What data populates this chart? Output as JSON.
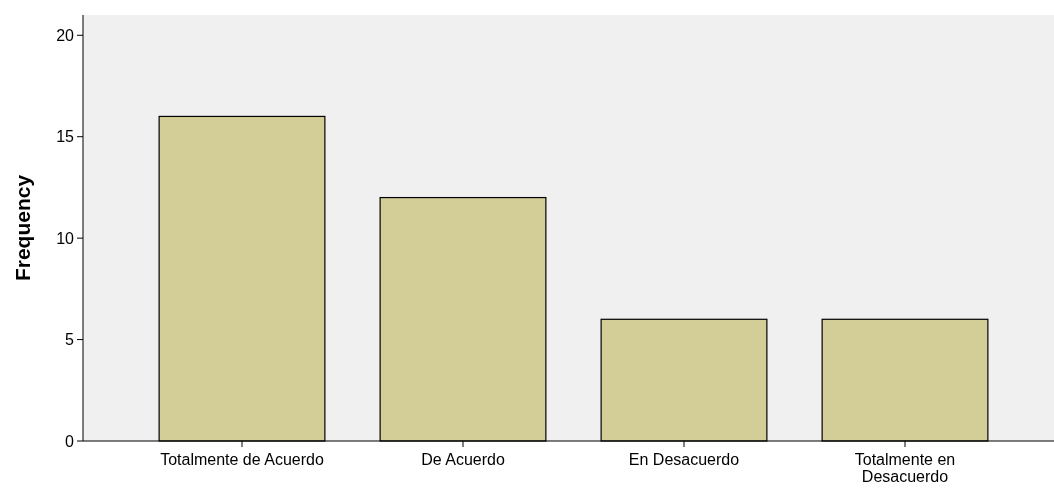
{
  "chart_data": {
    "type": "bar",
    "ylabel": "Frequency",
    "categories": [
      "Totalmente de Acuerdo",
      "De Acuerdo",
      "En Desacuerdo",
      "Totalmente en Desacuerdo"
    ],
    "values": [
      16,
      12,
      6,
      6
    ],
    "color": "#d3ce97",
    "ylim": [
      0,
      21
    ],
    "yticks": [
      0,
      5,
      10,
      15,
      20
    ],
    "grid": false
  }
}
